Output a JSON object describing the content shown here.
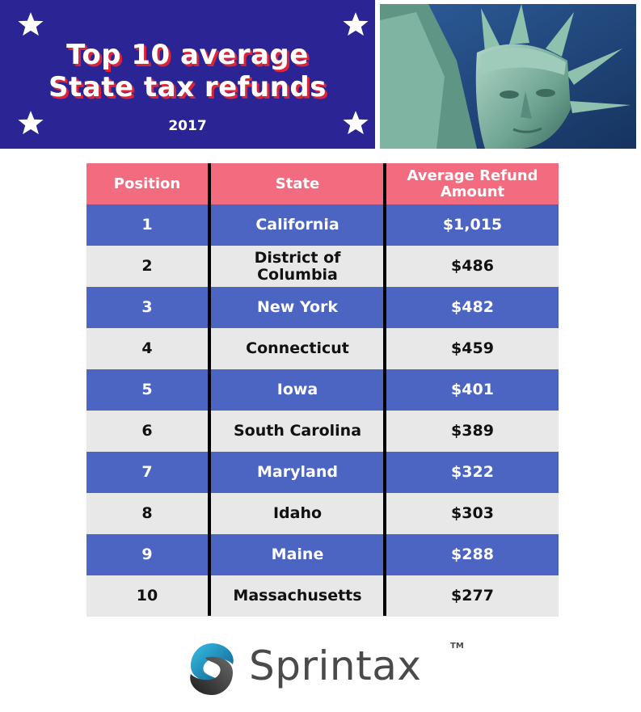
{
  "banner": {
    "title_line1": "Top 10 average",
    "title_line2": "State tax refunds",
    "year": "2017"
  },
  "colors": {
    "banner_bg": "#2a2494",
    "title_shadow": "#d9243a",
    "header_row": "#f26b7f",
    "odd_row": "#4c64c2",
    "even_row": "#e8e8e8"
  },
  "chart_data": {
    "type": "table",
    "columns": [
      "Position",
      "State",
      "Average Refund Amount"
    ],
    "rows": [
      [
        "1",
        "California",
        "$1,015"
      ],
      [
        "2",
        "District of Columbia",
        "$486"
      ],
      [
        "3",
        "New York",
        "$482"
      ],
      [
        "4",
        "Connecticut",
        "$459"
      ],
      [
        "5",
        "Iowa",
        "$401"
      ],
      [
        "6",
        "South Carolina",
        "$389"
      ],
      [
        "7",
        "Maryland",
        "$322"
      ],
      [
        "8",
        "Idaho",
        "$303"
      ],
      [
        "9",
        "Maine",
        "$288"
      ],
      [
        "10",
        "Massachusetts",
        "$277"
      ]
    ]
  },
  "logo": {
    "text": "Sprintax",
    "trademark": "TM"
  },
  "icons": [
    "star-icon",
    "statue-of-liberty-photo",
    "sprintax-logo-icon"
  ]
}
